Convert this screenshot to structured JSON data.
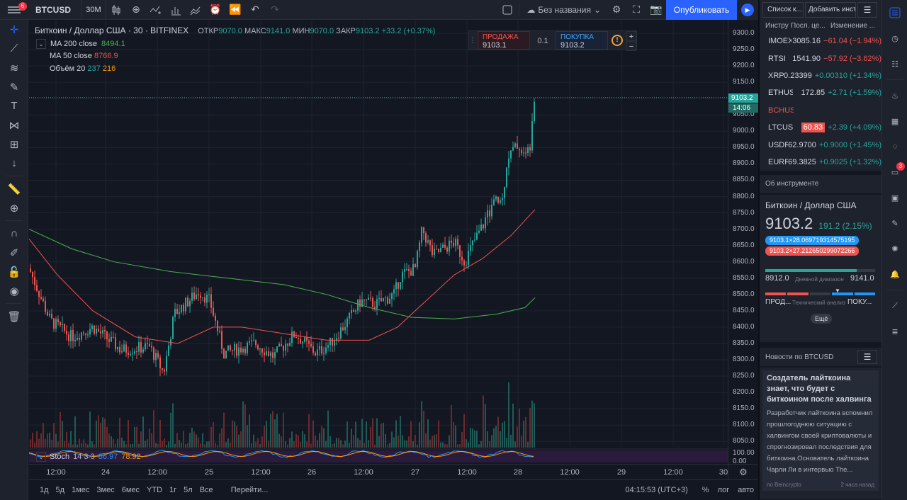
{
  "topbar": {
    "notification_count": "6",
    "symbol": "BTCUSD",
    "timeframe": "30M",
    "layout_name": "Без названия",
    "publish_label": "Опубликовать"
  },
  "legend": {
    "title": "Биткоин / Доллар США · 30 · BITFINEX",
    "open_label": "ОТКР",
    "open": "9070.0",
    "high_label": "МАКС",
    "high": "9141.0",
    "low_label": "МИН",
    "low": "9070.0",
    "close_label": "ЗАКР",
    "close": "9103.2",
    "change": "+33.2 (+0.37%)",
    "ma200_label": "MA 200 close",
    "ma200_value": "8494.1",
    "ma50_label": "MA 50 close",
    "ma50_value": "8766.9",
    "volume_label": "Объём 20",
    "volume_value1": "237",
    "volume_value2": "216"
  },
  "trade": {
    "sell_label": "ПРОДАЖА",
    "sell_price": "9103.1",
    "spread": "0.1",
    "buy_label": "ПОКУПКА",
    "buy_price": "9103.2",
    "warn_icon": "!",
    "plus": "+",
    "minus": "−"
  },
  "stoch": {
    "label": "Stoch",
    "params": "14 3 3",
    "k": "86.97",
    "d": "78.92"
  },
  "price_scale": {
    "labels": [
      "9300.0",
      "9250.0",
      "9200.0",
      "9150.0",
      "9100.0",
      "9050.0",
      "9000.0",
      "8950.0",
      "8900.0",
      "8850.0",
      "8800.0",
      "8750.0",
      "8700.0",
      "8650.0",
      "8600.0",
      "8550.0",
      "8500.0",
      "8450.0",
      "8400.0",
      "8350.0",
      "8300.0",
      "8250.0",
      "8200.0",
      "8150.0",
      "8100.0",
      "8050.0"
    ],
    "current_price": "9103.2",
    "countdown": "14:06",
    "stoch_labels": [
      "100.00",
      "0.00"
    ]
  },
  "time_scale": [
    "12:00",
    "24",
    "12:00",
    "25",
    "12:00",
    "26",
    "12:00",
    "27",
    "12:00",
    "28",
    "12:00",
    "29",
    "12:00",
    "30"
  ],
  "bottom": {
    "ranges": [
      "1д",
      "5д",
      "1мес",
      "3мес",
      "6мес",
      "YTD",
      "1г",
      "5л",
      "Все"
    ],
    "goto": "Перейти...",
    "clock": "04:15:53 (UTC+3)",
    "percent": "%",
    "log": "лог",
    "auto": "авто"
  },
  "watchlist": {
    "tab_label": "Список к...",
    "add_label": "Добавить инстр",
    "columns": [
      "Инстру",
      "Посл. це...",
      "Изменение ..."
    ],
    "rows": [
      {
        "symbol": "IMOEX",
        "last": "3085.16",
        "change": "−61.04 (−1.94%)",
        "dir": "dn"
      },
      {
        "symbol": "RTSI",
        "last": "1541.90",
        "change": "−57.92 (−3.62%)",
        "dir": "dn"
      },
      {
        "symbol": "XRPUSD",
        "last": "0.23399",
        "change": "+0.00310 (+1.34%)",
        "dir": "up"
      },
      {
        "symbol": "ETHUSD",
        "last": "172.85",
        "change": "+2.71 (+1.59%)",
        "dir": "up"
      },
      {
        "symbol": "BCHUSD",
        "last": "",
        "change": "",
        "dir": "hl"
      },
      {
        "symbol": "LTCUSD",
        "last": "60.83",
        "change": "+2.39 (+4.09%)",
        "dir": "flash"
      },
      {
        "symbol": "USDRUB",
        "last": "62.9700",
        "change": "+0.9000 (+1.45%)",
        "dir": "up"
      },
      {
        "symbol": "EURRUB",
        "last": "69.3825",
        "change": "+0.9025 (+1.32%)",
        "dir": "up"
      }
    ]
  },
  "about": {
    "header": "Об инструменте",
    "name": "Биткоин / Доллар США",
    "price": "9103.2",
    "change": "191.2 (2.15%)",
    "bid_pill": "9103.1×28.069719314575195",
    "ask_pill": "9103.2×27.212650299072266",
    "day_low": "8912.0",
    "day_range_label": "Дневной диапазон",
    "day_high": "9141.0",
    "day_range_fill": 0.83,
    "tech_sell": "ПРОД...",
    "tech_label": "Технический анализ",
    "tech_buy": "ПОКУ...",
    "more": "Ещё"
  },
  "news": {
    "header": "Новости по BTCUSD",
    "headline": "Создатель лайткоина знает, что будет с биткоином после халвинга",
    "body": "Разработчик лайткоина вспомнил прошлогоднюю ситуацию с халвингом своей криптовалюты и спрогнозировал последствия для биткоина.Основатель лайткоина Чарли Ли в интервью The...",
    "source": "по Beincrypto",
    "time": "2 часа назад"
  },
  "right_strip": {
    "chat_badge": "3"
  },
  "colors": {
    "up": "#26a69a",
    "down": "#ef5350",
    "accent": "#2962ff",
    "ma200": "#4caf50",
    "ma50": "#ef5350"
  }
}
